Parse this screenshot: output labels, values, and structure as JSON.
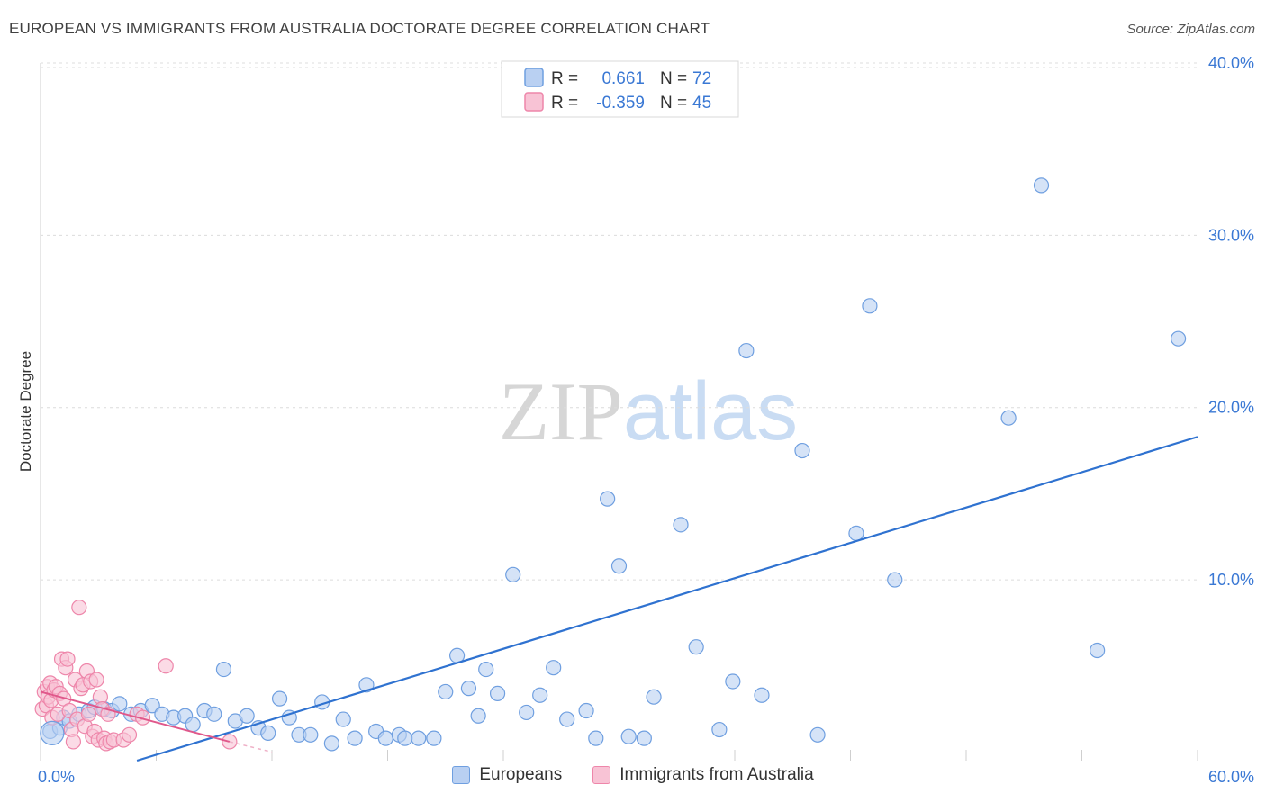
{
  "header": {
    "title": "EUROPEAN VS IMMIGRANTS FROM AUSTRALIA DOCTORATE DEGREE CORRELATION CHART",
    "source": "Source: ZipAtlas.com"
  },
  "chart_data": {
    "type": "scatter",
    "title": "EUROPEAN VS IMMIGRANTS FROM AUSTRALIA DOCTORATE DEGREE CORRELATION CHART",
    "xlabel": "",
    "ylabel": "Doctorate Degree",
    "xlim": [
      0,
      60
    ],
    "ylim": [
      -0.5,
      40
    ],
    "x_tick_labels": [
      "0.0%",
      "60.0%"
    ],
    "y_ticks": [
      10,
      20,
      30,
      40
    ],
    "y_tick_labels": [
      "10.0%",
      "20.0%",
      "30.0%",
      "40.0%"
    ],
    "grid": true,
    "watermark": {
      "part1": "ZIP",
      "part2": "atlas"
    },
    "legend": {
      "rows": [
        {
          "r_label": "R =",
          "r_value": "0.661",
          "n_label": "N =",
          "n_value": "72"
        },
        {
          "r_label": "R =",
          "r_value": "-0.359",
          "n_label": "N =",
          "n_value": "45"
        }
      ]
    },
    "series": [
      {
        "name": "Europeans",
        "color": "#6f9fe0",
        "fill": "#b9d0f2",
        "trend_color": "#2f72d0",
        "trend": [
          [
            5.0,
            -0.5
          ],
          [
            60.0,
            18.3
          ]
        ],
        "points": [
          [
            0.5,
            1.2
          ],
          [
            1.0,
            1.4
          ],
          [
            1.2,
            2.0
          ],
          [
            1.5,
            1.8
          ],
          [
            2.0,
            2.2
          ],
          [
            2.5,
            2.4
          ],
          [
            2.8,
            2.6
          ],
          [
            3.3,
            2.5
          ],
          [
            3.7,
            2.4
          ],
          [
            4.1,
            2.8
          ],
          [
            4.7,
            2.2
          ],
          [
            5.2,
            2.4
          ],
          [
            5.8,
            2.7
          ],
          [
            6.3,
            2.2
          ],
          [
            6.9,
            2.0
          ],
          [
            7.5,
            2.1
          ],
          [
            7.9,
            1.6
          ],
          [
            8.5,
            2.4
          ],
          [
            9.0,
            2.2
          ],
          [
            9.5,
            4.8
          ],
          [
            10.1,
            1.8
          ],
          [
            10.7,
            2.1
          ],
          [
            11.3,
            1.4
          ],
          [
            11.8,
            1.1
          ],
          [
            12.4,
            3.1
          ],
          [
            12.9,
            2.0
          ],
          [
            13.4,
            1.0
          ],
          [
            14.0,
            1.0
          ],
          [
            14.6,
            2.9
          ],
          [
            15.1,
            0.5
          ],
          [
            15.7,
            1.9
          ],
          [
            16.3,
            0.8
          ],
          [
            16.9,
            3.9
          ],
          [
            17.4,
            1.2
          ],
          [
            17.9,
            0.8
          ],
          [
            18.6,
            1.0
          ],
          [
            18.9,
            0.8
          ],
          [
            19.6,
            0.8
          ],
          [
            20.4,
            0.8
          ],
          [
            21.0,
            3.5
          ],
          [
            21.6,
            5.6
          ],
          [
            22.2,
            3.7
          ],
          [
            22.7,
            2.1
          ],
          [
            23.1,
            4.8
          ],
          [
            23.7,
            3.4
          ],
          [
            24.5,
            10.3
          ],
          [
            25.2,
            2.3
          ],
          [
            25.9,
            3.3
          ],
          [
            26.6,
            4.9
          ],
          [
            27.3,
            1.9
          ],
          [
            28.3,
            2.4
          ],
          [
            28.8,
            0.8
          ],
          [
            29.4,
            14.7
          ],
          [
            30.0,
            10.8
          ],
          [
            30.5,
            0.9
          ],
          [
            31.3,
            0.8
          ],
          [
            31.8,
            3.2
          ],
          [
            33.2,
            13.2
          ],
          [
            34.0,
            6.1
          ],
          [
            35.2,
            1.3
          ],
          [
            35.9,
            4.1
          ],
          [
            36.6,
            23.3
          ],
          [
            37.4,
            3.3
          ],
          [
            39.5,
            17.5
          ],
          [
            40.3,
            1.0
          ],
          [
            42.3,
            12.7
          ],
          [
            43.0,
            25.9
          ],
          [
            44.3,
            10.0
          ],
          [
            50.2,
            19.4
          ],
          [
            51.9,
            32.9
          ],
          [
            54.8,
            5.9
          ],
          [
            59.0,
            24.0
          ]
        ]
      },
      {
        "name": "Immigrants from Australia",
        "color": "#ee86aa",
        "fill": "#f8c3d5",
        "trend_color": "#e0588b",
        "trend": [
          [
            0.0,
            3.5
          ],
          [
            9.8,
            0.6
          ]
        ],
        "trend_dashed": [
          [
            9.8,
            0.6
          ],
          [
            12.0,
            0.0
          ]
        ],
        "points": [
          [
            0.1,
            2.5
          ],
          [
            0.2,
            3.5
          ],
          [
            0.3,
            2.7
          ],
          [
            0.35,
            3.8
          ],
          [
            0.4,
            3.2
          ],
          [
            0.5,
            4.0
          ],
          [
            0.55,
            3.0
          ],
          [
            0.6,
            2.0
          ],
          [
            0.7,
            3.6
          ],
          [
            0.8,
            3.8
          ],
          [
            0.9,
            2.2
          ],
          [
            1.0,
            3.4
          ],
          [
            1.1,
            5.4
          ],
          [
            1.2,
            3.1
          ],
          [
            1.3,
            4.9
          ],
          [
            1.4,
            5.4
          ],
          [
            1.5,
            2.4
          ],
          [
            1.6,
            1.3
          ],
          [
            1.7,
            0.6
          ],
          [
            1.8,
            4.2
          ],
          [
            1.9,
            1.9
          ],
          [
            2.0,
            8.4
          ],
          [
            2.1,
            3.7
          ],
          [
            2.2,
            3.9
          ],
          [
            2.3,
            1.5
          ],
          [
            2.4,
            4.7
          ],
          [
            2.5,
            2.2
          ],
          [
            2.6,
            4.1
          ],
          [
            2.7,
            0.9
          ],
          [
            2.8,
            1.2
          ],
          [
            2.9,
            4.2
          ],
          [
            3.0,
            0.7
          ],
          [
            3.1,
            3.2
          ],
          [
            3.2,
            2.5
          ],
          [
            3.3,
            0.8
          ],
          [
            3.4,
            0.5
          ],
          [
            3.5,
            2.2
          ],
          [
            3.6,
            0.6
          ],
          [
            3.8,
            0.7
          ],
          [
            4.3,
            0.7
          ],
          [
            4.6,
            1.0
          ],
          [
            5.0,
            2.2
          ],
          [
            5.3,
            2.0
          ],
          [
            6.5,
            5.0
          ],
          [
            9.8,
            0.6
          ]
        ]
      }
    ]
  }
}
